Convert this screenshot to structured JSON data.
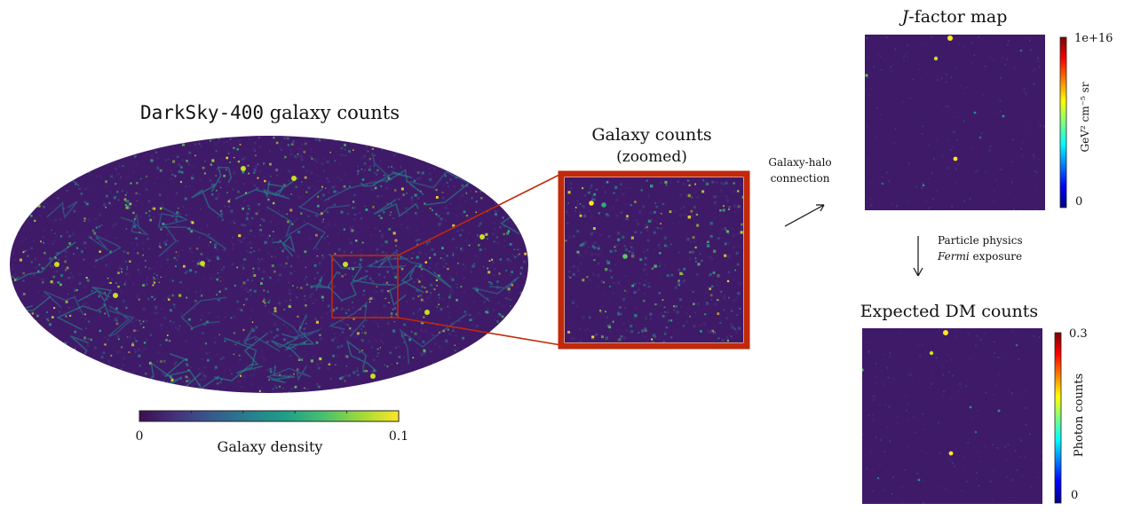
{
  "sky_map": {
    "title_mono": "DarkSky-400",
    "title_rest": " galaxy counts",
    "colorbar": {
      "min_label": "0",
      "max_label": "0.1",
      "label": "Galaxy density",
      "colors": [
        "#3b0f4f",
        "#46327e",
        "#365c8d",
        "#277f8e",
        "#1fa187",
        "#4ac16d",
        "#a0da39",
        "#fde725"
      ]
    }
  },
  "zoom_panel": {
    "title_line1": "Galaxy counts",
    "title_line2": "(zoomed)",
    "frame_color": "#c0290a"
  },
  "arrows": {
    "halo_label_line1": "Galaxy-halo",
    "halo_label_line2": "connection",
    "physics_label_line1": "Particle physics",
    "physics_label_italic": "Fermi",
    "physics_label_rest": " exposure"
  },
  "jfactor_map": {
    "title_italic": "J",
    "title_rest": "-factor map",
    "colorbar": {
      "max_label": "1e+16",
      "min_label": "0",
      "unit_label": "GeV² cm⁻⁵ sr"
    }
  },
  "dm_map": {
    "title": "Expected DM counts",
    "colorbar": {
      "max_label": "0.3",
      "min_label": "0",
      "unit_label": "Photon counts"
    }
  },
  "colors": {
    "background_map": "#3f1a68",
    "jet_scale": [
      "#00007f",
      "#0000ff",
      "#007fff",
      "#00ffff",
      "#7fff7f",
      "#ffff00",
      "#ff7f00",
      "#ff0000",
      "#7f0000"
    ]
  }
}
